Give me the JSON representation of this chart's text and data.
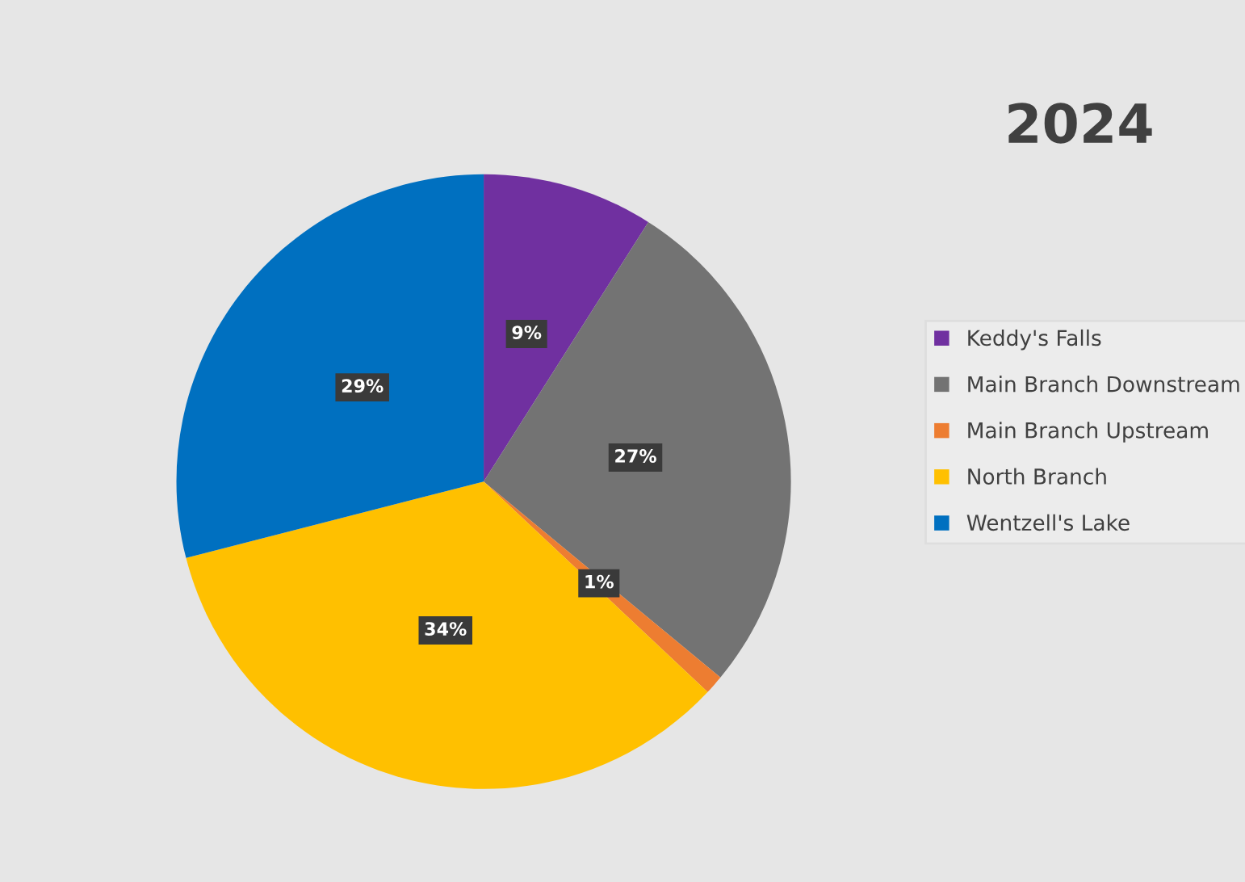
{
  "chart_data": {
    "type": "pie",
    "title": "2024",
    "categories": [
      "Keddy's Falls",
      "Main Branch Downstream",
      "Main Branch Upstream",
      "North Branch",
      "Wentzell's Lake"
    ],
    "values": [
      9,
      27,
      1,
      34,
      29
    ],
    "value_labels": [
      "9%",
      "27%",
      "1%",
      "34%",
      "29%"
    ],
    "colors": [
      "#7030a0",
      "#737373",
      "#ed7d31",
      "#ffc000",
      "#0070c0"
    ],
    "legend": "right"
  }
}
